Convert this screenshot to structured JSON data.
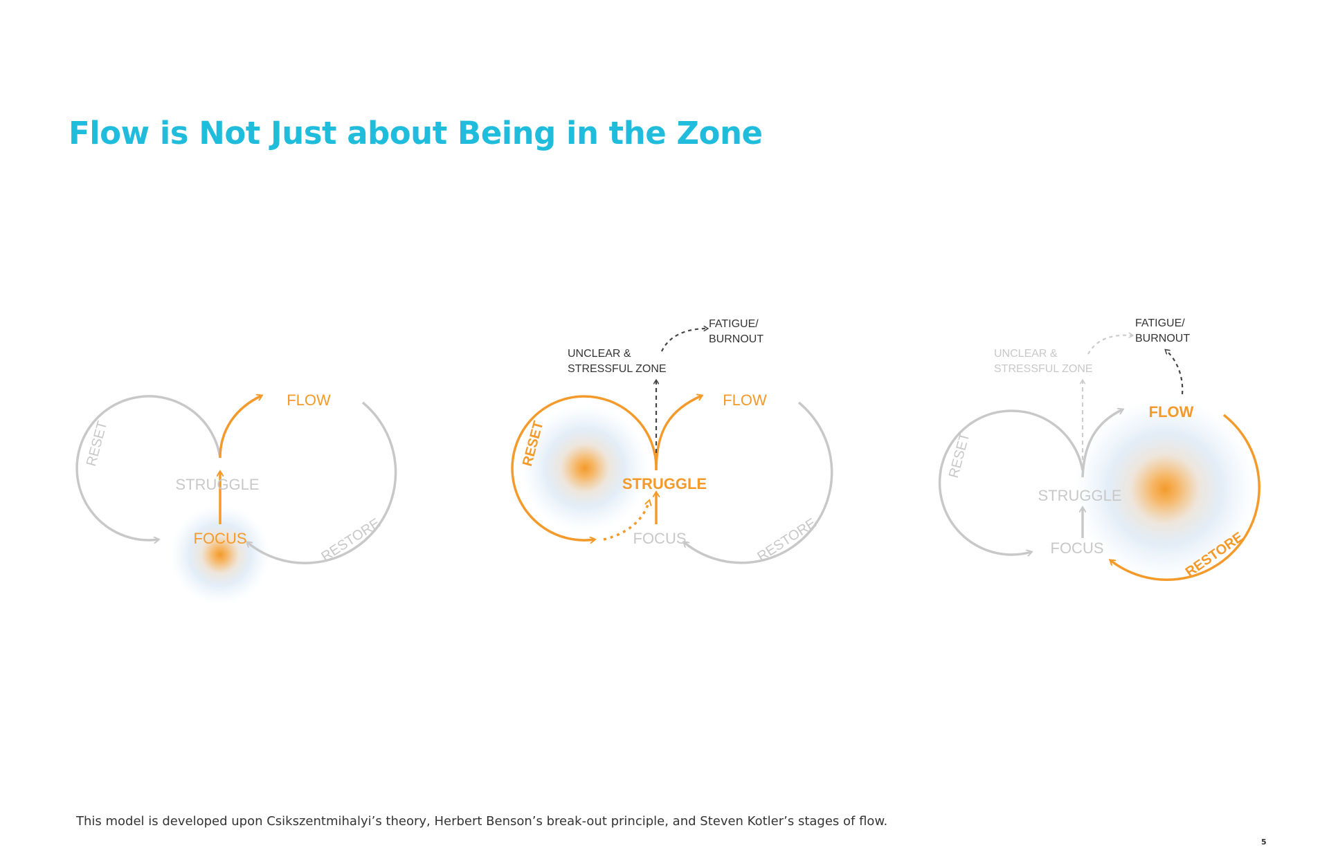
{
  "title": "Flow is Not Just about Being in the Zone",
  "footnote": "This model is developed upon Csikszentmihalyi’s theory, Herbert Benson’s break-out principle, and Steven Kotler’s stages of flow.",
  "page_number": "5",
  "colors": {
    "title": "#20bcdc",
    "active": "#f39a2b",
    "inactive": "#c8c8c8",
    "dark": "#333333",
    "glow_outer": "#cfe2f4"
  },
  "labels": {
    "flow": "FLOW",
    "struggle": "STRUGGLE",
    "focus": "FOCUS",
    "reset": "RESET",
    "restore": "RESTORE",
    "unclear_line1": "UNCLEAR &",
    "unclear_line2": "STRESSFUL ZONE",
    "fatigue_line1": "FATIGUE/",
    "fatigue_line2": "BURNOUT"
  },
  "stages": [
    {
      "active": "focus"
    },
    {
      "active": "reset"
    },
    {
      "active": "restore"
    }
  ]
}
